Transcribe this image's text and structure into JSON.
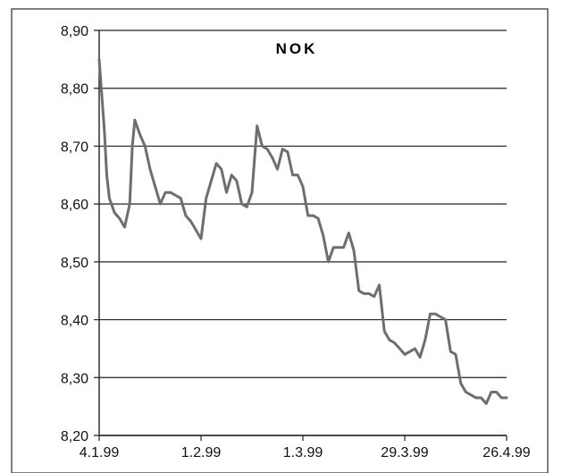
{
  "chart_data": {
    "type": "line",
    "title": "NOK",
    "xlabel": "",
    "ylabel": "",
    "ylim": [
      8.2,
      8.9
    ],
    "y_ticks": [
      8.2,
      8.3,
      8.4,
      8.5,
      8.6,
      8.7,
      8.8,
      8.9
    ],
    "y_tick_labels": [
      "8,20",
      "8,30",
      "8,40",
      "8,50",
      "8,60",
      "8,70",
      "8,80",
      "8,90"
    ],
    "x_range": [
      0,
      80
    ],
    "x_ticks": [
      0,
      20,
      40,
      60,
      80
    ],
    "x_tick_labels": [
      "4.1.99",
      "1.2.99",
      "1.3.99",
      "29.3.99",
      "26.4.99"
    ],
    "grid": "horizontal",
    "legend": "none",
    "line_color": "#6e6e6e",
    "series": [
      {
        "x": [
          0,
          1,
          1.5,
          2,
          3,
          4,
          5,
          6,
          6.5,
          7,
          8,
          9,
          10,
          11,
          12,
          13,
          14,
          15,
          16,
          17,
          18,
          19,
          20,
          21,
          22,
          23,
          24,
          25,
          26,
          27,
          28,
          29,
          30,
          31,
          32,
          33,
          34,
          35,
          36,
          37,
          38,
          39,
          40,
          41,
          42,
          43,
          44,
          45,
          46,
          47,
          48,
          49,
          50,
          51,
          52,
          53,
          54,
          55,
          56,
          57,
          58,
          59,
          60,
          61,
          62,
          63,
          64,
          65,
          66,
          67,
          68,
          69,
          70,
          71,
          72,
          73,
          74,
          75,
          76,
          77,
          78,
          79,
          80
        ],
        "y": [
          8.85,
          8.73,
          8.65,
          8.61,
          8.585,
          8.575,
          8.56,
          8.6,
          8.7,
          8.745,
          8.72,
          8.7,
          8.66,
          8.63,
          8.6,
          8.62,
          8.62,
          8.615,
          8.61,
          8.58,
          8.57,
          8.555,
          8.54,
          8.61,
          8.64,
          8.67,
          8.66,
          8.62,
          8.65,
          8.64,
          8.6,
          8.595,
          8.62,
          8.735,
          8.7,
          8.695,
          8.68,
          8.66,
          8.695,
          8.69,
          8.65,
          8.65,
          8.63,
          8.58,
          8.58,
          8.575,
          8.545,
          8.5,
          8.525,
          8.525,
          8.525,
          8.55,
          8.52,
          8.45,
          8.445,
          8.445,
          8.44,
          8.46,
          8.38,
          8.365,
          8.36,
          8.35,
          8.34,
          8.345,
          8.35,
          8.335,
          8.365,
          8.41,
          8.41,
          8.405,
          8.4,
          8.345,
          8.34,
          8.29,
          8.275,
          8.27,
          8.265,
          8.265,
          8.255,
          8.275,
          8.275,
          8.265,
          8.265
        ]
      }
    ]
  }
}
